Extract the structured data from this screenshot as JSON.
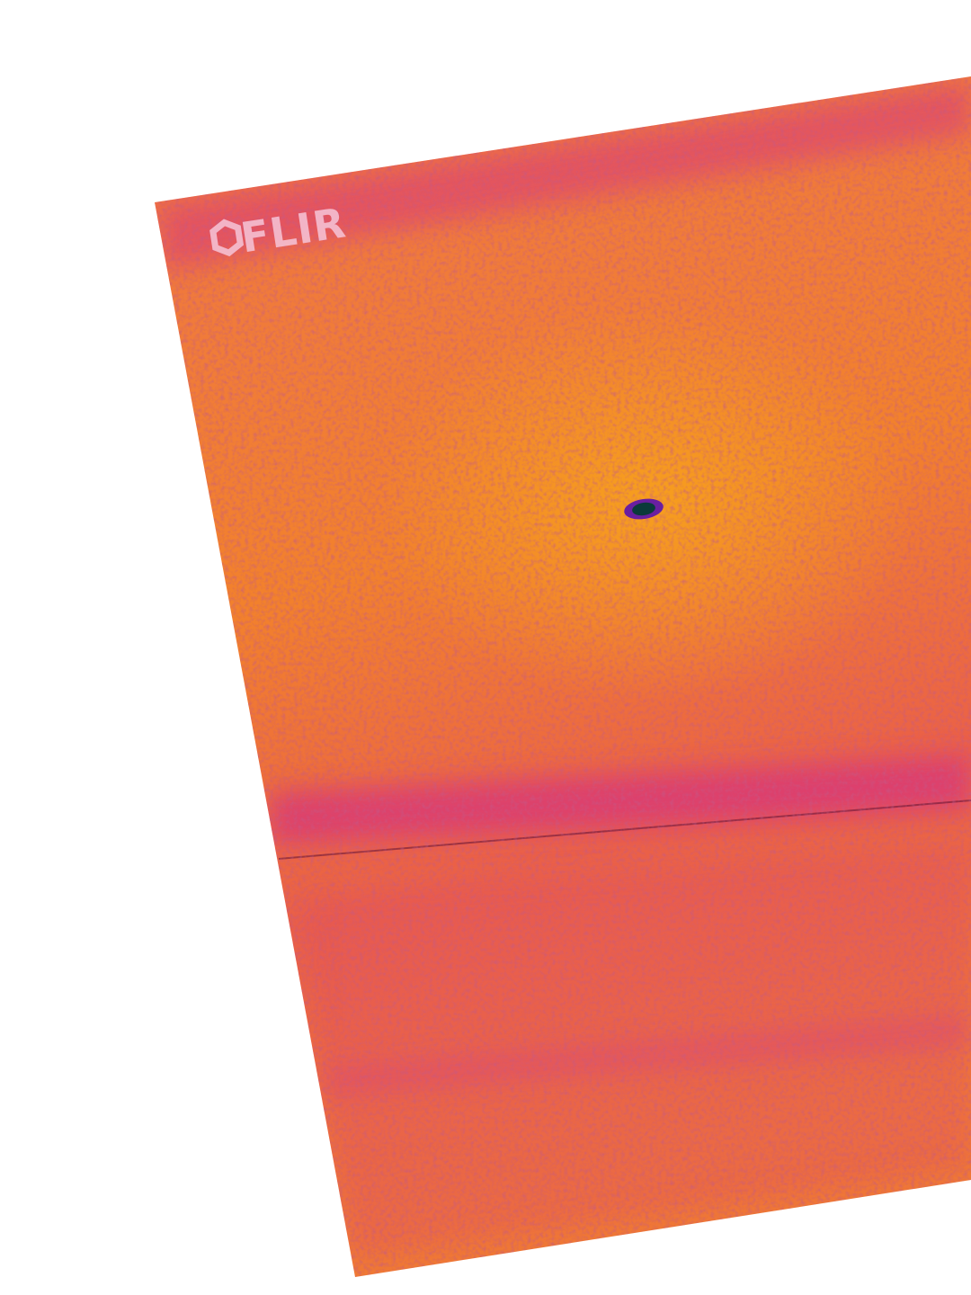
{
  "logo": "FLIR"
}
